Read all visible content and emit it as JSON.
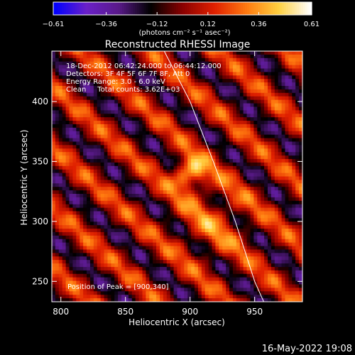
{
  "chart_data": {
    "type": "heatmap",
    "title": "Reconstructed RHESSI Image",
    "xlabel": "Heliocentric X (arcsec)",
    "ylabel": "Heliocentric Y (arcsec)",
    "xlim": [
      793,
      987
    ],
    "ylim": [
      233,
      442
    ],
    "x_ticks": [
      800,
      850,
      900,
      950
    ],
    "y_ticks": [
      250,
      300,
      350,
      400
    ],
    "colorbar": {
      "min": -0.61,
      "max": 0.61,
      "ticks": [
        -0.61,
        -0.36,
        -0.12,
        0.12,
        0.36,
        0.61
      ],
      "tick_labels": [
        "−0.61",
        "−0.36",
        "−0.12",
        "0.12",
        "0.36",
        "0.61"
      ],
      "units": "(photons cm⁻² s⁻¹ asec⁻²)"
    },
    "peak": {
      "x": 900,
      "y": 340,
      "value": 0.61
    },
    "info_lines": [
      "18-Dec-2012 06:42:24.000 to 06:44:12.000",
      "Detectors: 3F 4F 5F 6F 7F 8F, Att 0",
      "Energy Range: 3.0 - 6.0 keV",
      "Clean     Total counts: 3.62E+03"
    ],
    "peak_label": "Position of Peak = [900,340]",
    "limb_points": [
      [
        880,
        442
      ],
      [
        900,
        400
      ],
      [
        918,
        350
      ],
      [
        935,
        300
      ],
      [
        950,
        250
      ],
      [
        957,
        233
      ]
    ]
  },
  "footer": {
    "timestamp": "16-May-2022 19:08"
  },
  "colors": {
    "background": "#000000",
    "foreground": "#ffffff",
    "colormap": [
      "#0000ff",
      "#6a20c8",
      "#5a1a8a",
      "#000000",
      "#8a0000",
      "#e02000",
      "#ff7a10",
      "#ffd040",
      "#ffffff"
    ]
  }
}
